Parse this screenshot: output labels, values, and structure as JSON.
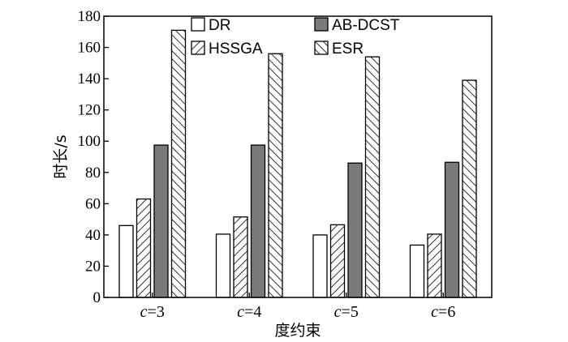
{
  "chart_data": {
    "type": "bar",
    "categories": [
      "c=3",
      "c=4",
      "c=5",
      "c=6"
    ],
    "category_parts": [
      {
        "var": "c",
        "rest": "=3"
      },
      {
        "var": "c",
        "rest": "=4"
      },
      {
        "var": "c",
        "rest": "=5"
      },
      {
        "var": "c",
        "rest": "=6"
      }
    ],
    "series": [
      {
        "name": "DR",
        "values": [
          46,
          40.5,
          40,
          33.5
        ],
        "fill": "white"
      },
      {
        "name": "HSSGA",
        "values": [
          63,
          51.5,
          46.5,
          40.5
        ],
        "fill": "hatch-forward"
      },
      {
        "name": "AB-DCST",
        "values": [
          97.5,
          97.5,
          86,
          86.5
        ],
        "fill": "#7a7a7a"
      },
      {
        "name": "ESR",
        "values": [
          171,
          156,
          154,
          139
        ],
        "fill": "hatch-backward"
      }
    ],
    "ylim": [
      0,
      180
    ],
    "yticks": [
      "0",
      "20",
      "40",
      "60",
      "80",
      "100",
      "120",
      "140",
      "160",
      "180"
    ],
    "xlabel": "度约束",
    "ylabel": "时长/s",
    "legend": {
      "placement": "top",
      "columns": 2,
      "order": [
        "DR",
        "AB-DCST",
        "HSSGA",
        "ESR"
      ]
    },
    "grid": false,
    "colors": {
      "axis": "#000000",
      "solid_bar": "#7a7a7a",
      "hatch_line": "#000000",
      "background": "#ffffff"
    }
  }
}
